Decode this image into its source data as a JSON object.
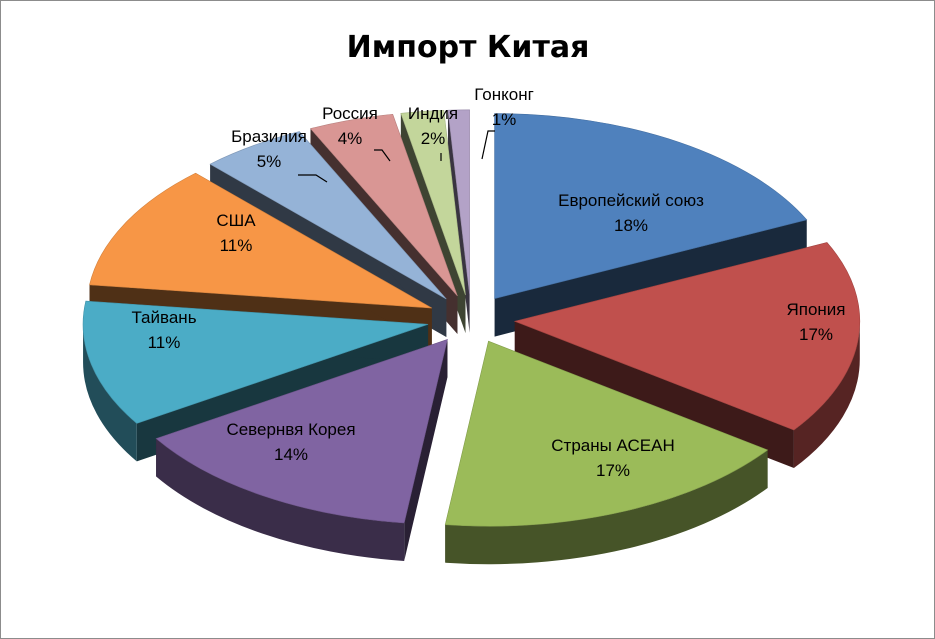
{
  "chart_data": {
    "type": "pie",
    "title": "Импорт Китая",
    "exploded": true,
    "three_d": true,
    "slices": [
      {
        "label": "Европейский союз",
        "value": 18,
        "pct_label": "18%",
        "color": "#4f81bd"
      },
      {
        "label": "Япония",
        "value": 17,
        "pct_label": "17%",
        "color": "#c0504d"
      },
      {
        "label": "Страны АСЕАН",
        "value": 17,
        "pct_label": "17%",
        "color": "#9bbb59"
      },
      {
        "label": "Севернвя Корея",
        "value": 14,
        "pct_label": "14%",
        "color": "#8064a2"
      },
      {
        "label": "Тайвань",
        "value": 11,
        "pct_label": "11%",
        "color": "#4bacc6"
      },
      {
        "label": "США",
        "value": 11,
        "pct_label": "11%",
        "color": "#f79646"
      },
      {
        "label": "Бразилия",
        "value": 5,
        "pct_label": "5%",
        "color": "#95b3d7"
      },
      {
        "label": "Россия",
        "value": 4,
        "pct_label": "4%",
        "color": "#d99694"
      },
      {
        "label": "Индия",
        "value": 2,
        "pct_label": "2%",
        "color": "#c3d69b"
      },
      {
        "label": "Гонконг",
        "value": 1,
        "pct_label": "1%",
        "color": "#b3a2c7"
      }
    ]
  }
}
